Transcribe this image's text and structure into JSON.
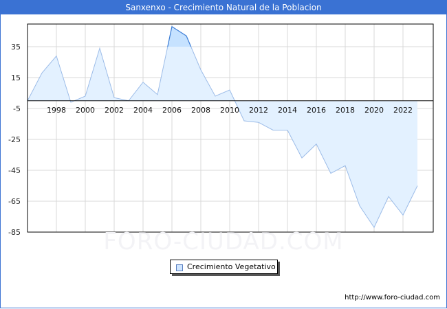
{
  "header": {
    "title": "Sanxenxo - Crecimiento Natural de la Poblacion"
  },
  "legend": {
    "label": "Crecimiento Vegetativo",
    "swatch_color": "#cfe5ff"
  },
  "watermark": "FORO-CIUDAD.COM",
  "source": "http://www.foro-ciudad.com",
  "colors": {
    "title_bg": "#3a72d3",
    "area_fill": "#e3f1ff",
    "line": "#9cbce8",
    "highlight_fill": "#c6e2ff",
    "highlight_line": "#3d7ed6",
    "grid": "#d8d8d8"
  },
  "chart_data": {
    "type": "area",
    "title": "Sanxenxo - Crecimiento Natural de la Poblacion",
    "xlabel": "",
    "ylabel": "",
    "x": [
      1996,
      1997,
      1998,
      1999,
      2000,
      2001,
      2002,
      2003,
      2004,
      2005,
      2006,
      2007,
      2008,
      2009,
      2010,
      2011,
      2012,
      2013,
      2014,
      2015,
      2016,
      2017,
      2018,
      2019,
      2020,
      2021,
      2022,
      2023
    ],
    "series": [
      {
        "name": "Crecimiento Vegetativo",
        "values": [
          0,
          18,
          29,
          -1,
          3,
          34,
          2,
          0,
          12,
          4,
          48,
          42,
          20,
          3,
          7,
          -13,
          -14,
          -19,
          -19,
          -37,
          -28,
          -47,
          -42,
          -68,
          -82,
          -62,
          -74,
          -55
        ]
      }
    ],
    "x_ticks": [
      "1998",
      "2000",
      "2002",
      "2004",
      "2006",
      "2008",
      "2010",
      "2012",
      "2014",
      "2016",
      "2018",
      "2020",
      "2022"
    ],
    "y_ticks": [
      35,
      15,
      -5,
      -25,
      -45,
      -65,
      -85
    ],
    "ylim": [
      -85,
      52
    ],
    "grid": true,
    "legend_position": "bottom-center"
  }
}
